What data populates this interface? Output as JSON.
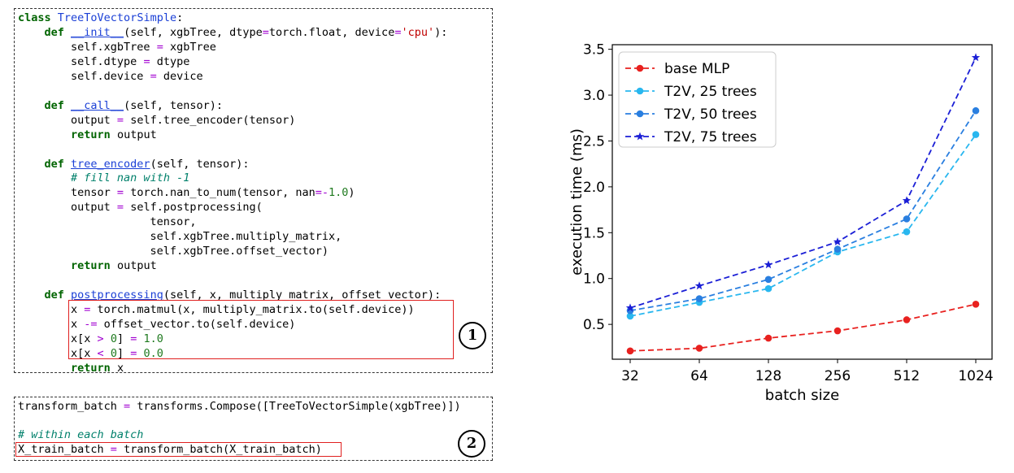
{
  "code1": {
    "lines": [
      [
        [
          "kw",
          "class "
        ],
        [
          "cls",
          "TreeToVectorSimple"
        ],
        [
          "t",
          ":"
        ]
      ],
      [
        [
          "t",
          "    "
        ],
        [
          "kw",
          "def "
        ],
        [
          "fn",
          "__init__"
        ],
        [
          "t",
          "(self, xgbTree, dtype"
        ],
        [
          "op",
          "="
        ],
        [
          "t",
          "torch.float, device"
        ],
        [
          "op",
          "="
        ],
        [
          "str",
          "'cpu'"
        ],
        [
          "t",
          "):"
        ]
      ],
      [
        [
          "t",
          "        self.xgbTree "
        ],
        [
          "op",
          "="
        ],
        [
          "t",
          " xgbTree"
        ]
      ],
      [
        [
          "t",
          "        self.dtype "
        ],
        [
          "op",
          "="
        ],
        [
          "t",
          " dtype"
        ]
      ],
      [
        [
          "t",
          "        self.device "
        ],
        [
          "op",
          "="
        ],
        [
          "t",
          " device"
        ]
      ],
      [
        [
          "t",
          ""
        ]
      ],
      [
        [
          "t",
          "    "
        ],
        [
          "kw",
          "def "
        ],
        [
          "fn",
          "__call__"
        ],
        [
          "t",
          "(self, tensor):"
        ]
      ],
      [
        [
          "t",
          "        output "
        ],
        [
          "op",
          "="
        ],
        [
          "t",
          " self.tree_encoder(tensor)"
        ]
      ],
      [
        [
          "t",
          "        "
        ],
        [
          "kw",
          "return"
        ],
        [
          "t",
          " output"
        ]
      ],
      [
        [
          "t",
          ""
        ]
      ],
      [
        [
          "t",
          "    "
        ],
        [
          "kw",
          "def "
        ],
        [
          "fn",
          "tree_encoder"
        ],
        [
          "t",
          "(self, tensor):"
        ]
      ],
      [
        [
          "t",
          "        "
        ],
        [
          "cm",
          "# fill nan with -1"
        ]
      ],
      [
        [
          "t",
          "        tensor "
        ],
        [
          "op",
          "="
        ],
        [
          "t",
          " torch.nan_to_num(tensor, nan"
        ],
        [
          "op",
          "=-"
        ],
        [
          "num",
          "1.0"
        ],
        [
          "t",
          ")"
        ]
      ],
      [
        [
          "t",
          "        output "
        ],
        [
          "op",
          "="
        ],
        [
          "t",
          " self.postprocessing("
        ]
      ],
      [
        [
          "t",
          "                    tensor,"
        ]
      ],
      [
        [
          "t",
          "                    self.xgbTree.multiply_matrix,"
        ]
      ],
      [
        [
          "t",
          "                    self.xgbTree.offset_vector)"
        ]
      ],
      [
        [
          "t",
          "        "
        ],
        [
          "kw",
          "return"
        ],
        [
          "t",
          " output"
        ]
      ],
      [
        [
          "t",
          ""
        ]
      ],
      [
        [
          "t",
          "    "
        ],
        [
          "kw",
          "def "
        ],
        [
          "fn",
          "postprocessing"
        ],
        [
          "t",
          "(self, x, multiply_matrix, offset_vector):"
        ]
      ],
      [
        [
          "t",
          "        x "
        ],
        [
          "op",
          "="
        ],
        [
          "t",
          " torch.matmul(x, multiply_matrix.to(self.device))"
        ]
      ],
      [
        [
          "t",
          "        x "
        ],
        [
          "op",
          "-="
        ],
        [
          "t",
          " offset_vector.to(self.device)"
        ]
      ],
      [
        [
          "t",
          "        x[x "
        ],
        [
          "op",
          ">"
        ],
        [
          "t",
          " "
        ],
        [
          "num",
          "0"
        ],
        [
          "t",
          "] "
        ],
        [
          "op",
          "="
        ],
        [
          "t",
          " "
        ],
        [
          "num",
          "1.0"
        ]
      ],
      [
        [
          "t",
          "        x[x "
        ],
        [
          "op",
          "<"
        ],
        [
          "t",
          " "
        ],
        [
          "num",
          "0"
        ],
        [
          "t",
          "] "
        ],
        [
          "op",
          "="
        ],
        [
          "t",
          " "
        ],
        [
          "num",
          "0.0"
        ]
      ],
      [
        [
          "t",
          "        "
        ],
        [
          "kw",
          "return"
        ],
        [
          "t",
          " x"
        ]
      ]
    ],
    "badge": "1"
  },
  "code2": {
    "lines": [
      [
        [
          "t",
          "transform_batch "
        ],
        [
          "op",
          "="
        ],
        [
          "t",
          " transforms.Compose([TreeToVectorSimple(xgbTree)])"
        ]
      ],
      [
        [
          "t",
          ""
        ]
      ],
      [
        [
          "cm",
          "# within each batch"
        ]
      ],
      [
        [
          "t",
          "X_train_batch "
        ],
        [
          "op",
          "="
        ],
        [
          "t",
          " transform_batch(X_train_batch)"
        ]
      ]
    ],
    "badge": "2"
  },
  "chart_data": {
    "type": "line",
    "categories": [
      "32",
      "64",
      "128",
      "256",
      "512",
      "1024"
    ],
    "xlabel": "batch size",
    "ylabel": "execution time (ms)",
    "ylim": [
      0.12,
      3.55
    ],
    "yticks": [
      "0.5",
      "1.0",
      "1.5",
      "2.0",
      "2.5",
      "3.0",
      "3.5"
    ],
    "grid": false,
    "legend_position": "top-left",
    "series": [
      {
        "name": "base MLP",
        "color": "#e8211f",
        "marker": "circle",
        "values": [
          0.21,
          0.24,
          0.35,
          0.43,
          0.55,
          0.72
        ]
      },
      {
        "name": "T2V, 25 trees",
        "color": "#29b7ef",
        "marker": "circle",
        "values": [
          0.59,
          0.74,
          0.89,
          1.29,
          1.51,
          2.57
        ]
      },
      {
        "name": "T2V, 50 trees",
        "color": "#2a7fe0",
        "marker": "circle",
        "values": [
          0.65,
          0.78,
          0.99,
          1.32,
          1.65,
          2.83
        ]
      },
      {
        "name": "T2V, 75 trees",
        "color": "#1b1fd6",
        "marker": "star",
        "values": [
          0.68,
          0.92,
          1.15,
          1.4,
          1.85,
          3.41
        ]
      }
    ]
  }
}
